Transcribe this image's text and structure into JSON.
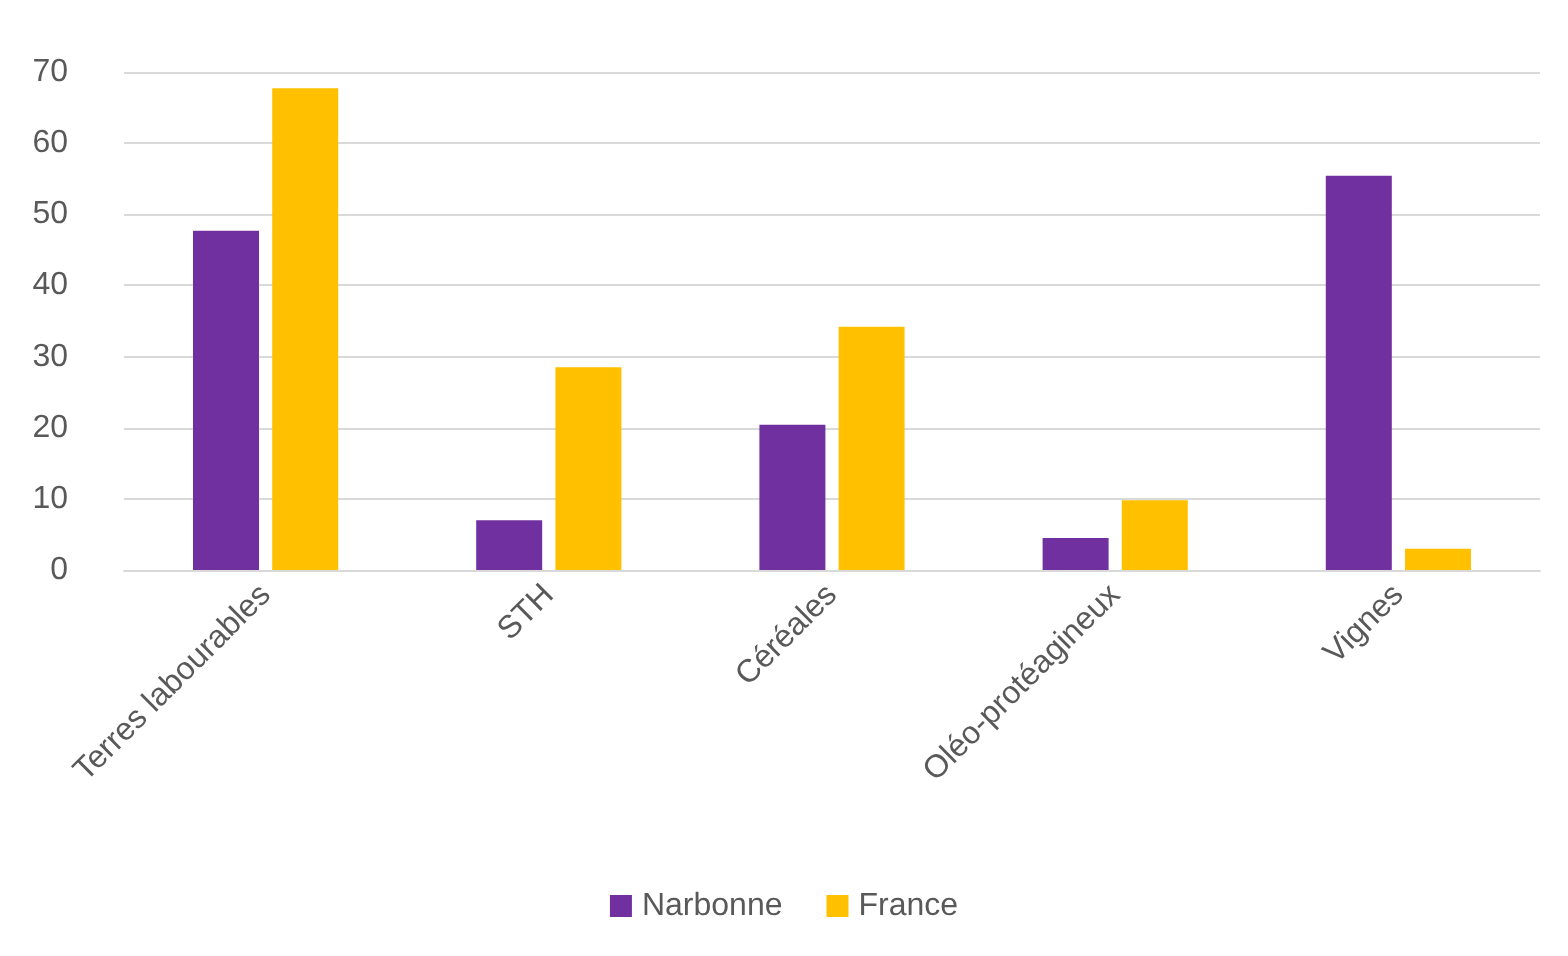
{
  "chart_data": {
    "type": "bar",
    "categories": [
      "Terres labourables",
      "STH",
      "Céréales",
      "Oléo-protéagineux",
      "Vignes"
    ],
    "series": [
      {
        "name": "Narbonne",
        "color": "#7030a0",
        "values": [
          47.7,
          7.0,
          20.4,
          4.5,
          55.4
        ]
      },
      {
        "name": "France",
        "color": "#ffc000",
        "values": [
          67.7,
          28.5,
          34.2,
          9.8,
          3.0
        ]
      }
    ],
    "ylim": [
      0,
      70
    ],
    "yticks": [
      0,
      10,
      20,
      30,
      40,
      50,
      60,
      70
    ],
    "grid": "y",
    "legend": "bottom"
  }
}
